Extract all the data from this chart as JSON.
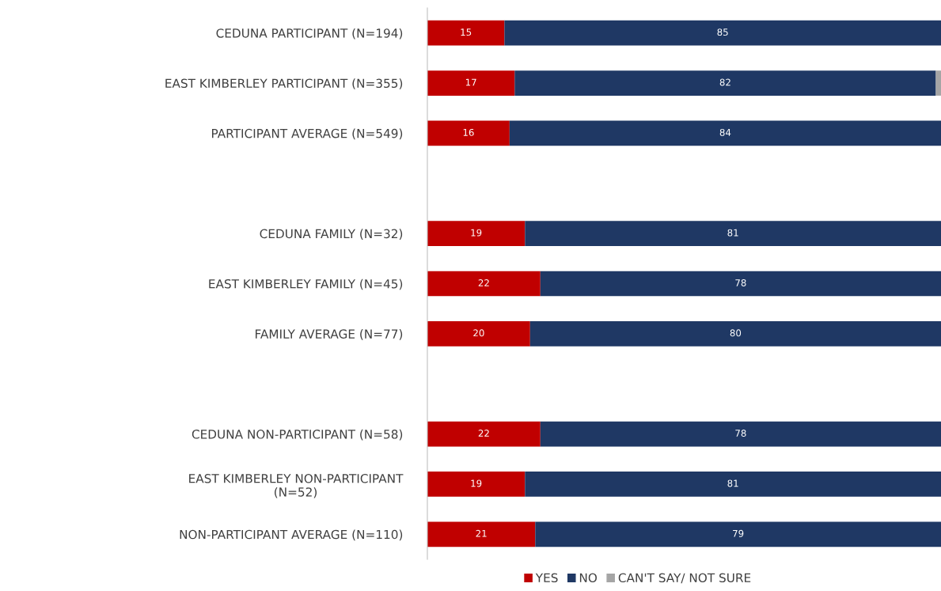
{
  "chart_data": {
    "type": "bar",
    "orientation": "horizontal",
    "stacked": true,
    "categories": [
      "CEDUNA PARTICIPANT (N=194)",
      "EAST KIMBERLEY PARTICIPANT (N=355)",
      "PARTICIPANT AVERAGE (N=549)",
      null,
      "CEDUNA FAMILY (N=32)",
      "EAST KIMBERLEY FAMILY (N=45)",
      "FAMILY AVERAGE (N=77)",
      null,
      "CEDUNA NON-PARTICIPANT (N=58)",
      "EAST KIMBERLEY NON-PARTICIPANT\n(N=52)",
      "NON-PARTICIPANT AVERAGE (N=110)"
    ],
    "series": [
      {
        "name": "YES",
        "color": "#c00000",
        "values": [
          15,
          17,
          16,
          null,
          19,
          22,
          20,
          null,
          22,
          19,
          21
        ],
        "value_labels": [
          "15",
          "17",
          "16",
          null,
          "19",
          "22",
          "20",
          null,
          "22",
          "19",
          "21"
        ]
      },
      {
        "name": "NO",
        "color": "#1f3864",
        "values": [
          85,
          82,
          84,
          null,
          81,
          78,
          80,
          null,
          78,
          81,
          79
        ],
        "value_labels": [
          "85",
          "82",
          "84",
          null,
          "81",
          "78",
          "80",
          null,
          "78",
          "81",
          "79"
        ]
      },
      {
        "name": "CAN'T SAY/ NOT SURE",
        "color": "#a5a5a5",
        "values": [
          0,
          1,
          0,
          null,
          0,
          0,
          0,
          null,
          0,
          0,
          0
        ],
        "value_labels": [
          null,
          null,
          null,
          null,
          null,
          null,
          null,
          null,
          null,
          null,
          null
        ]
      }
    ],
    "legend": "bottom",
    "grid": false,
    "tick_labels": "y"
  }
}
